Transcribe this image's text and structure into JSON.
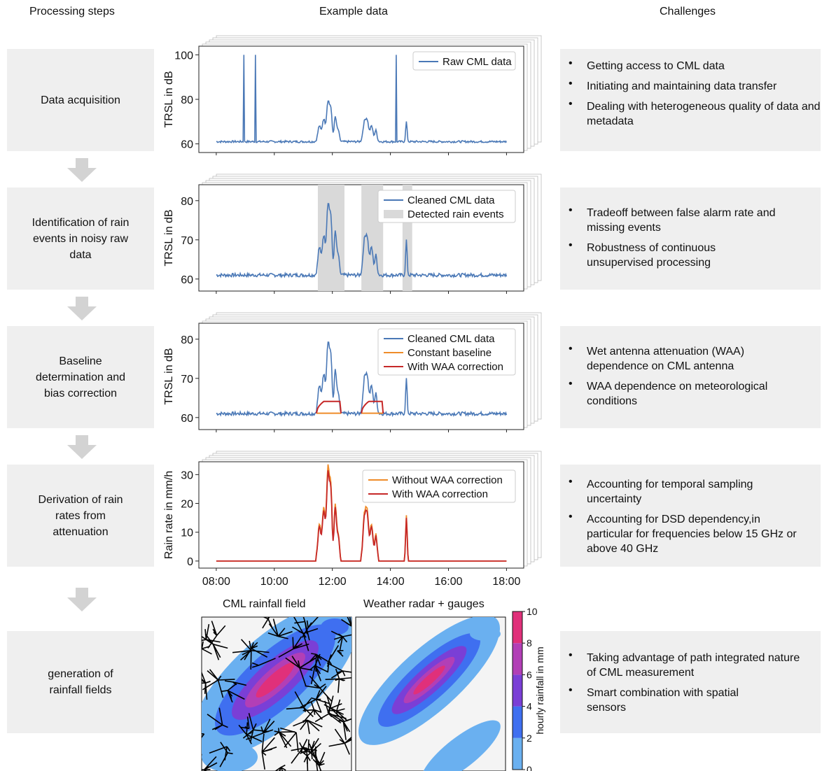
{
  "headers": {
    "steps": "Processing steps",
    "example": "Example data",
    "challenges": "Challenges"
  },
  "colors": {
    "raw": "#4a78b6",
    "orange": "#ef8c2a",
    "red": "#c62828",
    "panel": "#efefef",
    "rain_shade": "#d9d9d9"
  },
  "steps": [
    {
      "label": "Data acquisition"
    },
    {
      "label": "Identification of rain events in noisy raw data"
    },
    {
      "label": "Baseline determination and bias correction"
    },
    {
      "label": "Derivation of rain rates from attenuation"
    },
    {
      "label": "generation of rainfall fields"
    }
  ],
  "challenges": [
    {
      "items": [
        "Getting access to CML data",
        "Initiating and maintaining data transfer",
        "Dealing with heterogeneous quality of data and metadata"
      ]
    },
    {
      "items": [
        "Tradeoff between false alarm rate and missing events",
        "Robustness of continuous unsupervised processing"
      ]
    },
    {
      "items": [
        "Wet antenna attenuation (WAA) dependence on CML antenna",
        "WAA dependence on meteorological conditions"
      ]
    },
    {
      "items": [
        "Accounting for temporal sampling uncertainty",
        "Accounting for DSD dependency,in particular for frequencies below 15 GHz or above 40 GHz"
      ]
    },
    {
      "items": [
        "Taking advantage of path integrated nature of CML measurement",
        "Smart combination with spatial sensors"
      ]
    }
  ],
  "chart_data": [
    {
      "type": "line",
      "ylabel": "TRSL in dB",
      "ylim": [
        58,
        102
      ],
      "yticks": [
        60,
        80,
        100
      ],
      "legend": [
        "Raw CML data"
      ],
      "x": [
        "08:00",
        "10:00",
        "12:00",
        "14:00",
        "16:00",
        "18:00"
      ]
    },
    {
      "type": "line",
      "ylabel": "TRSL in dB",
      "ylim": [
        58,
        83
      ],
      "yticks": [
        60,
        70,
        80
      ],
      "legend": [
        "Cleaned CML data",
        "Detected rain events"
      ],
      "rain_events": [
        [
          "11:30",
          "12:25"
        ],
        [
          "13:00",
          "13:45"
        ],
        [
          "14:25",
          "14:45"
        ]
      ]
    },
    {
      "type": "line",
      "ylabel": "TRSL in dB",
      "ylim": [
        58,
        83
      ],
      "yticks": [
        60,
        70,
        80
      ],
      "legend": [
        "Cleaned CML data",
        "Constant baseline",
        "With WAA correction"
      ]
    },
    {
      "type": "line",
      "ylabel": "Rain rate in mm/h",
      "ylim": [
        -1,
        33
      ],
      "yticks": [
        0,
        10,
        20,
        30
      ],
      "legend": [
        "Without WAA correction",
        "With WAA correction"
      ],
      "xticks": [
        "08:00",
        "10:00",
        "12:00",
        "14:00",
        "16:00",
        "18:00"
      ]
    }
  ],
  "maps": {
    "left_title": "CML rainfall field",
    "right_title": "Weather radar + gauges",
    "colorbar_label": "hourly rainfall in mm",
    "colorbar_ticks": [
      "0",
      "2",
      "4",
      "6",
      "8",
      "10"
    ]
  }
}
